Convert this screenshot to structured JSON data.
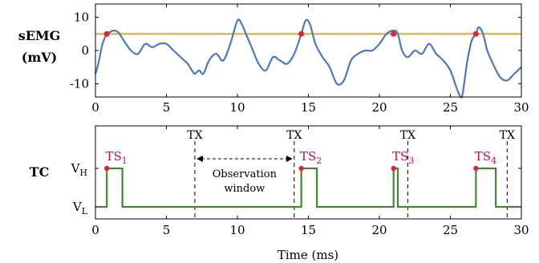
{
  "chart_data": [
    {
      "type": "line",
      "ylabel_lines": [
        "sEMG",
        "(mV)"
      ],
      "xlim": [
        0,
        30
      ],
      "ylim": [
        -14,
        14
      ],
      "x_ticks": [
        0,
        5,
        10,
        15,
        20,
        25,
        30
      ],
      "x_tick_labels": [
        "0",
        "5",
        "10",
        "15",
        "20",
        "25",
        "30"
      ],
      "y_ticks": [
        10,
        0,
        -10
      ],
      "y_tick_labels": [
        "10",
        "0",
        "-10"
      ],
      "colors": {
        "signal": "#4a78c8",
        "threshold": "#e6b93a",
        "crossing": "#e0223a"
      },
      "threshold": 5,
      "series": [
        {
          "x": [
            0,
            0.2,
            0.5,
            0.8,
            1.0,
            1.3,
            1.6,
            2.0,
            2.5,
            3.0,
            3.5,
            4.0,
            4.5,
            5.0,
            5.5,
            6.0,
            6.5,
            6.8,
            7.0,
            7.3,
            7.6,
            8.0,
            8.5,
            9.0,
            9.5,
            10.0,
            10.3,
            10.6,
            11.0,
            11.5,
            12.0,
            12.5,
            13.0,
            13.5,
            14.0,
            14.5,
            14.8,
            15.1,
            15.5,
            16.0,
            16.5,
            17.0,
            17.5,
            18.0,
            18.5,
            19.0,
            19.5,
            20.0,
            20.5,
            21.0,
            21.3,
            21.6,
            22.0,
            22.5,
            23.0,
            23.5,
            24.0,
            24.5,
            25.0,
            25.5,
            25.8,
            26.0,
            26.2,
            26.5,
            26.8,
            27.0,
            27.3,
            27.6,
            28.0,
            28.5,
            29.0,
            29.5,
            30.0
          ],
          "y": [
            -7,
            -4,
            2,
            5,
            5.5,
            6,
            5.5,
            3,
            0,
            -1,
            2,
            1,
            2,
            2,
            0,
            -2,
            -4,
            -6,
            -7,
            -6,
            -7,
            -3,
            -1,
            -3,
            2,
            9,
            8,
            5,
            1,
            -4,
            -6,
            -2,
            -3,
            -4,
            -1,
            5,
            9,
            8,
            2,
            -2,
            -5,
            -10,
            -9,
            -3,
            -1,
            0,
            0,
            2,
            5,
            6,
            5,
            0,
            -2,
            0,
            -1,
            2,
            -1,
            -3,
            -6,
            -12,
            -14,
            -9,
            -3,
            3,
            5,
            7,
            5,
            0,
            -4,
            -8,
            -9,
            -7,
            -5
          ]
        }
      ],
      "threshold_crossings_x": [
        0.8,
        14.5,
        21.0,
        26.8
      ]
    },
    {
      "type": "line",
      "ylabel_lines": [
        "TC"
      ],
      "xlabel": "Time (ms)",
      "xlim": [
        0,
        30
      ],
      "x_ticks": [
        0,
        5,
        10,
        15,
        20,
        25,
        30
      ],
      "x_tick_labels": [
        "0",
        "5",
        "10",
        "15",
        "20",
        "25",
        "30"
      ],
      "level_labels": [
        {
          "base": "V",
          "sub": "H",
          "level": 1
        },
        {
          "base": "V",
          "sub": "L",
          "level": 0
        }
      ],
      "colors": {
        "signal": "#3f8a2e",
        "marker": "#e0223a",
        "label": "#e0004d"
      },
      "pulses": [
        [
          0.8,
          1.9
        ],
        [
          14.5,
          15.6
        ],
        [
          21.0,
          21.3
        ],
        [
          26.8,
          28.2
        ]
      ],
      "timestamps": [
        {
          "base": "TS",
          "sub": "1",
          "x": 0.8
        },
        {
          "base": "TS",
          "sub": "2",
          "x": 14.5
        },
        {
          "base": "TS",
          "sub": "3",
          "x": 21.0
        },
        {
          "base": "TS",
          "sub": "4",
          "x": 26.8
        }
      ],
      "tx_markers": [
        {
          "label": "TX",
          "x": 7.0
        },
        {
          "label": "TX",
          "x": 14.0
        },
        {
          "label": "TX",
          "x": 22.0
        },
        {
          "label": "TX",
          "x": 29.0
        }
      ],
      "annotation": {
        "lines": [
          "Observation",
          "window"
        ],
        "from_x": 7.0,
        "to_x": 14.0
      }
    }
  ]
}
